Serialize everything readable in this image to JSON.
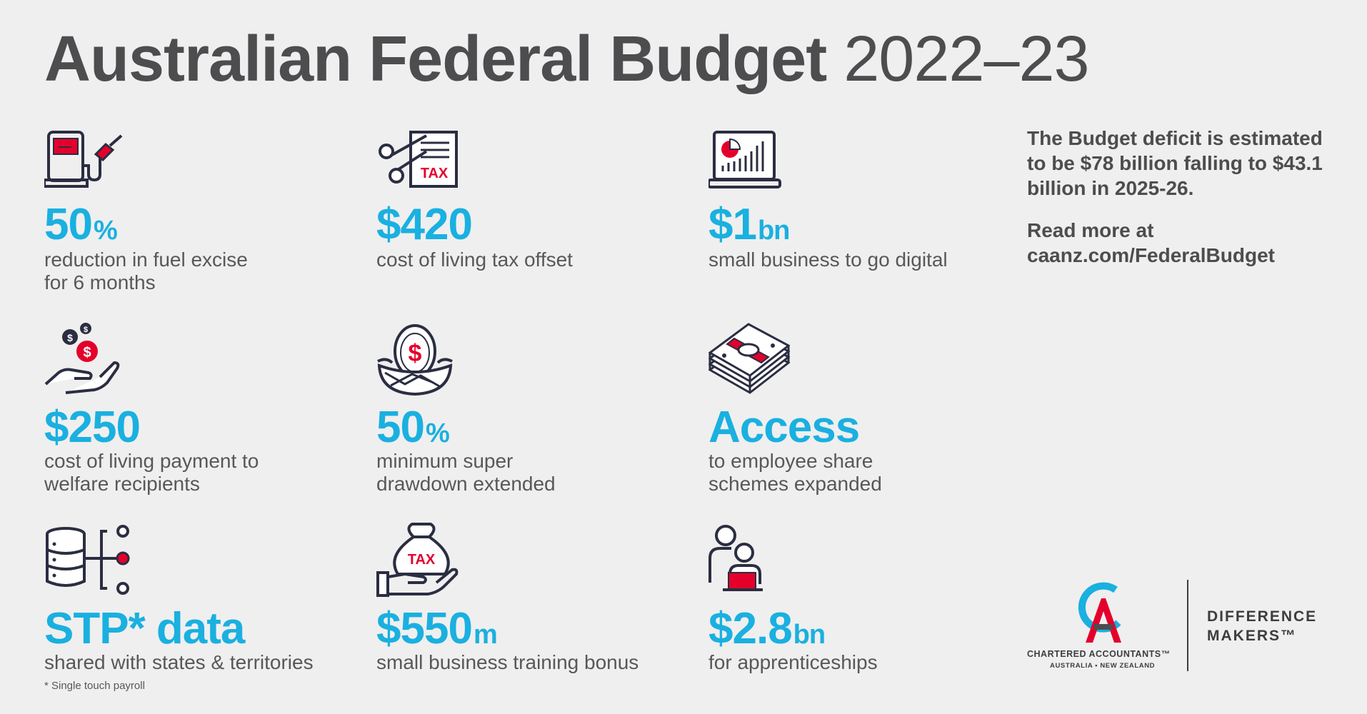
{
  "header": {
    "title_bold": "Australian Federal Budget",
    "title_year": "2022–23"
  },
  "colors": {
    "accent_blue": "#1ab0e0",
    "accent_red": "#e4002b",
    "text_grey": "#58585a",
    "background": "#efefef"
  },
  "items": [
    {
      "icon": "fuel-pump-icon",
      "figure": "50",
      "suffix": "%",
      "desc_line1": "reduction in fuel excise",
      "desc_line2": "for 6 months"
    },
    {
      "icon": "scissors-tax-document-icon",
      "figure": "$420",
      "suffix": "",
      "desc_line1": "cost of living tax offset",
      "desc_line2": ""
    },
    {
      "icon": "laptop-chart-icon",
      "figure": "$1",
      "suffix": "bn",
      "desc_line1": "small business to go digital",
      "desc_line2": ""
    },
    {
      "icon": "hand-coins-icon",
      "figure": "$250",
      "suffix": "",
      "desc_line1": "cost of living payment to",
      "desc_line2": "welfare recipients"
    },
    {
      "icon": "nest-egg-icon",
      "figure": "50",
      "suffix": "%",
      "desc_line1": "minimum super",
      "desc_line2": "drawdown extended"
    },
    {
      "icon": "cash-stack-icon",
      "figure": "Access",
      "suffix": "",
      "desc_line1": "to employee share",
      "desc_line2": "schemes expanded"
    },
    {
      "icon": "database-network-icon",
      "figure": "STP* data",
      "suffix": "",
      "desc_line1": "shared with states & territories",
      "desc_line2": ""
    },
    {
      "icon": "hand-money-bag-icon",
      "figure": "$550",
      "suffix": "m",
      "desc_line1": "small business training bonus",
      "desc_line2": ""
    },
    {
      "icon": "apprentice-people-icon",
      "figure": "$2.8",
      "suffix": "bn",
      "desc_line1": "for apprenticeships",
      "desc_line2": ""
    }
  ],
  "icon_text": {
    "tax_label": "TAX",
    "dollar_sign": "$"
  },
  "footnote": "* Single touch payroll",
  "side": {
    "deficit_text": "The Budget deficit is estimated to be $78 billion falling to $43.1 billion in 2025-26.",
    "read_more": "Read more at",
    "link": "caanz.com/FederalBudget"
  },
  "logo": {
    "name": "CHARTERED ACCOUNTANTS™",
    "region": "AUSTRALIA • NEW ZEALAND",
    "tagline_line1": "DIFFERENCE",
    "tagline_line2": "MAKERS™"
  }
}
